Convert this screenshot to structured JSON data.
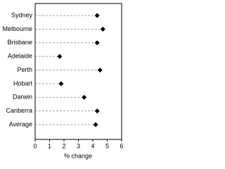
{
  "chart_data": {
    "type": "dot",
    "categories": [
      "Sydney",
      "Melbourne",
      "Brisbane",
      "Adelaide",
      "Perth",
      "Hobart",
      "Darwin",
      "Canberra",
      "Average"
    ],
    "values": [
      4.3,
      4.7,
      4.3,
      1.7,
      4.5,
      1.8,
      3.4,
      4.3,
      4.2
    ],
    "color": "#000000",
    "xlim": [
      0,
      6
    ],
    "xticks": [
      0,
      1,
      2,
      3,
      4,
      5,
      6
    ],
    "xlabel": "% change"
  }
}
